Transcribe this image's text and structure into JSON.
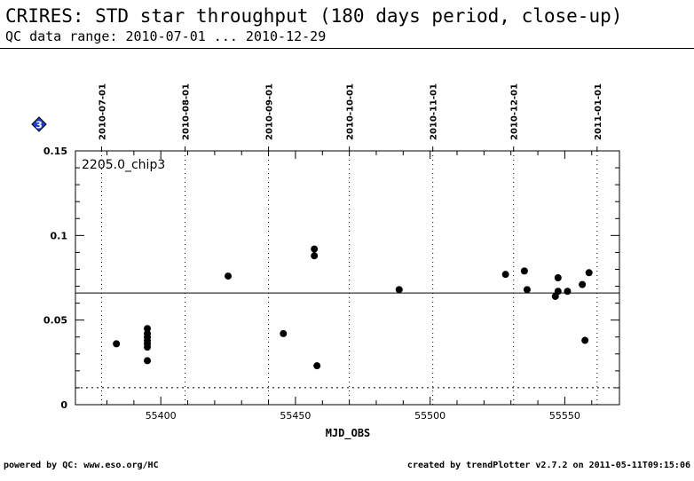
{
  "header": {
    "title": "CRIRES: STD star throughput (180 days period, close-up)",
    "subtitle": "QC data range: 2010-07-01 ... 2010-12-29"
  },
  "footer": {
    "left": "powered by QC: www.eso.org/HC",
    "right": "created by trendPlotter v2.7.2 on 2011-05-11T09:15:06"
  },
  "badge": {
    "label": "3",
    "color": "#1f3fd0"
  },
  "chart_data": {
    "type": "scatter",
    "xlabel": "MJD_OBS",
    "ylabel": "",
    "panel_label": "2205.0_chip3",
    "xlim": [
      53368,
      55568
    ],
    "ylim": [
      0,
      0.15
    ],
    "x_ticks": [
      55400,
      55450,
      55500,
      55550
    ],
    "y_ticks": [
      0,
      0.05,
      0.1,
      0.15
    ],
    "y_tick_labels": [
      "0",
      "0.05",
      "0.1",
      "0.15"
    ],
    "date_markers": [
      {
        "label": "2010-07-01",
        "mjd": 55378
      },
      {
        "label": "2010-08-01",
        "mjd": 55409
      },
      {
        "label": "2010-09-01",
        "mjd": 55440
      },
      {
        "label": "2010-10-01",
        "mjd": 55470
      },
      {
        "label": "2010-11-01",
        "mjd": 55501
      },
      {
        "label": "2010-12-01",
        "mjd": 55531
      },
      {
        "label": "2011-01-01",
        "mjd": 55562
      }
    ],
    "reference_lines": [
      {
        "y": 0.066,
        "style": "solid"
      },
      {
        "y": 0.01,
        "style": "dotted"
      }
    ],
    "grid": false,
    "series": [
      {
        "points": [
          [
            55383.5,
            0.036
          ],
          [
            55395.0,
            0.045
          ],
          [
            55395.0,
            0.042
          ],
          [
            55395.0,
            0.04
          ],
          [
            55395.0,
            0.038
          ],
          [
            55395.0,
            0.036
          ],
          [
            55395.0,
            0.034
          ],
          [
            55395.0,
            0.026
          ],
          [
            55425.0,
            0.076
          ],
          [
            55445.5,
            0.042
          ],
          [
            55457.0,
            0.092
          ],
          [
            55457.0,
            0.088
          ],
          [
            55458.0,
            0.023
          ],
          [
            55488.5,
            0.068
          ],
          [
            55528.0,
            0.077
          ],
          [
            55535.0,
            0.079
          ],
          [
            55536.0,
            0.068
          ],
          [
            55546.5,
            0.064
          ],
          [
            55547.5,
            0.067
          ],
          [
            55547.5,
            0.075
          ],
          [
            55551.0,
            0.067
          ],
          [
            55556.5,
            0.071
          ],
          [
            55557.5,
            0.038
          ],
          [
            55559.0,
            0.078
          ]
        ]
      }
    ]
  }
}
